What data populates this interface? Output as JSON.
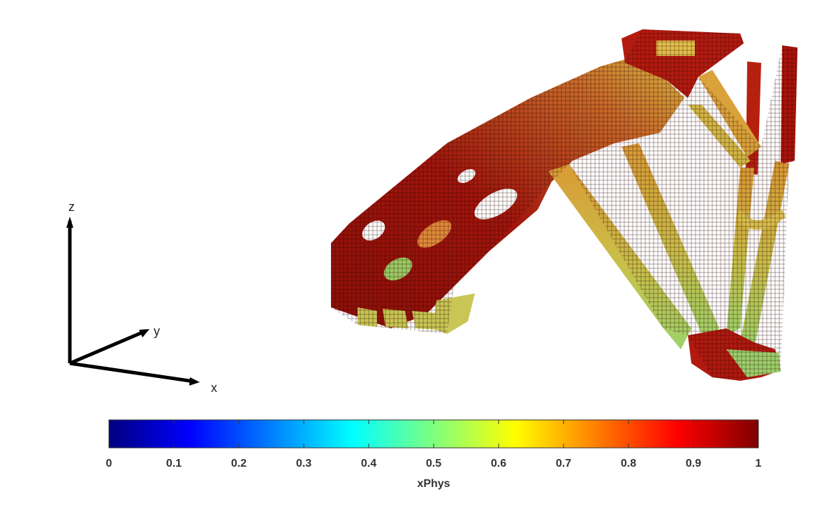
{
  "triad": {
    "x_label": "x",
    "y_label": "y",
    "z_label": "z"
  },
  "colorbar": {
    "title": "xPhys",
    "min": 0,
    "max": 1,
    "colormap": "jet",
    "ticks": [
      "0",
      "0.1",
      "0.2",
      "0.3",
      "0.4",
      "0.5",
      "0.6",
      "0.7",
      "0.8",
      "0.9",
      "1"
    ],
    "tick_values": [
      0,
      0.1,
      0.2,
      0.3,
      0.4,
      0.5,
      0.6,
      0.7,
      0.8,
      0.9,
      1
    ]
  },
  "colors": {
    "jet_stops": [
      "#00007f",
      "#0000ff",
      "#007fff",
      "#00ffff",
      "#7fff7f",
      "#ffff00",
      "#ff7f00",
      "#ff0000",
      "#7f0000"
    ],
    "structure_dark": "#7a0a06",
    "structure_red": "#b0170e",
    "structure_orange": "#e0762a",
    "structure_yellow": "#e6d24a",
    "structure_green": "#8fe08a",
    "axis_black": "#000000"
  }
}
